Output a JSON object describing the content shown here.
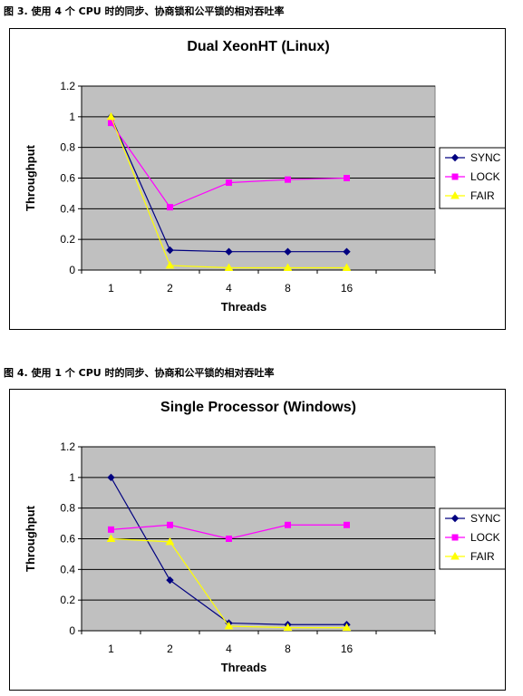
{
  "captions": [
    "图 3. 使用 4 个 CPU 时的同步、协商锁和公平锁的相对吞吐率",
    "图 4. 使用 1 个 CPU 时的同步、协商和公平锁的相对吞吐率"
  ],
  "colors": {
    "plot_bg": "#c0c0c0",
    "SYNC": "#000080",
    "LOCK": "#ff00ff",
    "FAIR": "#ffff00"
  },
  "chart_data": [
    {
      "type": "line",
      "title": "Dual XeonHT (Linux)",
      "xlabel": "Threads",
      "ylabel": "Throughput",
      "categories": [
        "1",
        "2",
        "4",
        "8",
        "16"
      ],
      "ylim": [
        0,
        1.2
      ],
      "yticks": [
        "0",
        "0.2",
        "0.4",
        "0.6",
        "0.8",
        "1",
        "1.2"
      ],
      "grid": true,
      "legend": "right",
      "series": [
        {
          "name": "SYNC",
          "marker": "diamond",
          "values": [
            1.0,
            0.13,
            0.12,
            0.12,
            0.12
          ]
        },
        {
          "name": "LOCK",
          "marker": "square",
          "values": [
            0.96,
            0.41,
            0.57,
            0.59,
            0.6
          ]
        },
        {
          "name": "FAIR",
          "marker": "triangle",
          "values": [
            1.0,
            0.03,
            0.015,
            0.015,
            0.015
          ]
        }
      ]
    },
    {
      "type": "line",
      "title": "Single Processor (Windows)",
      "xlabel": "Threads",
      "ylabel": "Throughput",
      "categories": [
        "1",
        "2",
        "4",
        "8",
        "16"
      ],
      "ylim": [
        0,
        1.2
      ],
      "yticks": [
        "0",
        "0.2",
        "0.4",
        "0.6",
        "0.8",
        "1",
        "1.2"
      ],
      "grid": true,
      "legend": "right",
      "series": [
        {
          "name": "SYNC",
          "marker": "diamond",
          "values": [
            1.0,
            0.33,
            0.05,
            0.04,
            0.04
          ]
        },
        {
          "name": "LOCK",
          "marker": "square",
          "values": [
            0.66,
            0.69,
            0.6,
            0.69,
            0.69
          ]
        },
        {
          "name": "FAIR",
          "marker": "triangle",
          "values": [
            0.6,
            0.58,
            0.03,
            0.02,
            0.02
          ]
        }
      ]
    }
  ]
}
